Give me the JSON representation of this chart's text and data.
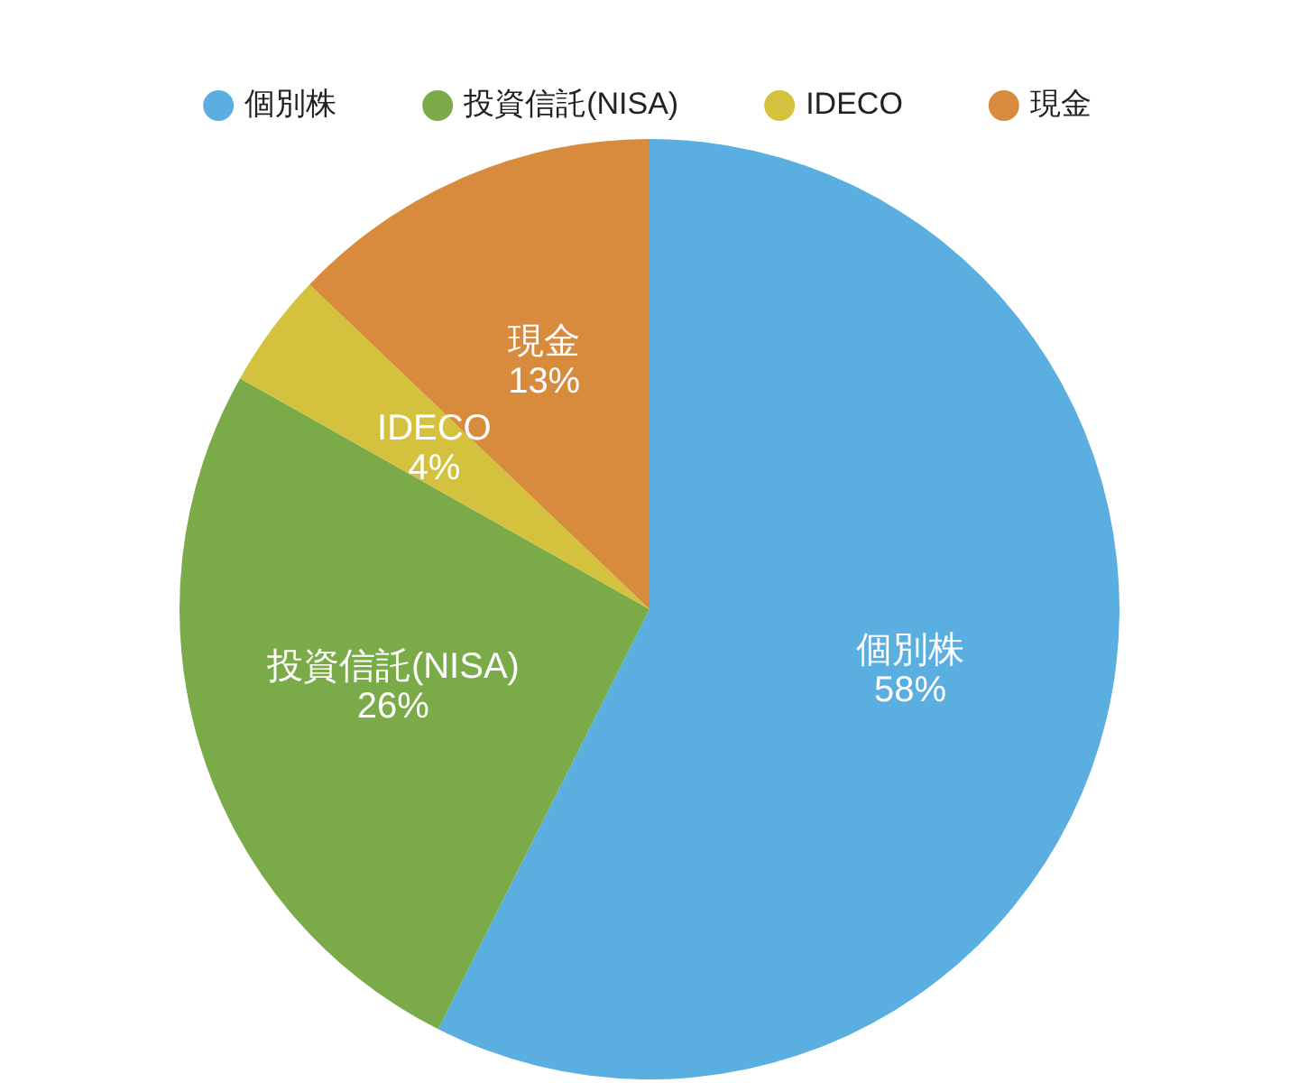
{
  "chart_data": {
    "type": "pie",
    "categories": [
      "個別株",
      "投資信託(NISA)",
      "IDECO",
      "現金"
    ],
    "values": [
      58,
      26,
      4,
      13
    ],
    "value_labels": [
      "58%",
      "26%",
      "4%",
      "13%"
    ],
    "colors": [
      "#5aaee0",
      "#7aab48",
      "#d4c23e",
      "#d88b3c"
    ],
    "legend": "top"
  }
}
